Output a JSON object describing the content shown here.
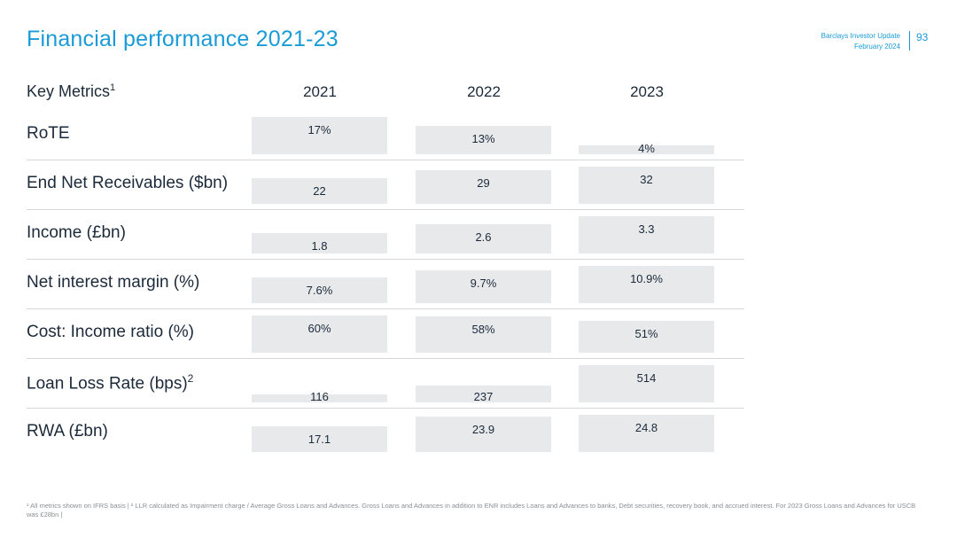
{
  "header": {
    "title": "Financial performance 2021-23",
    "doc_name": "Barclays Investor Update",
    "date": "February 2024",
    "page_number": "93"
  },
  "table": {
    "metric_header": "Key Metrics",
    "metric_header_sup": "1"
  },
  "chart_data": {
    "type": "bar",
    "categories": [
      "2021",
      "2022",
      "2023"
    ],
    "series": [
      {
        "name": "RoTE",
        "values": [
          17,
          13,
          4
        ],
        "labels": [
          "17%",
          "13%",
          "4%"
        ]
      },
      {
        "name": "End Net Receivables ($bn)",
        "values": [
          22,
          29,
          32
        ],
        "labels": [
          "22",
          "29",
          "32"
        ]
      },
      {
        "name": "Income (£bn)",
        "values": [
          1.8,
          2.6,
          3.3
        ],
        "labels": [
          "1.8",
          "2.6",
          "3.3"
        ]
      },
      {
        "name": "Net interest margin (%)",
        "values": [
          7.6,
          9.7,
          10.9
        ],
        "labels": [
          "7.6%",
          "9.7%",
          "10.9%"
        ]
      },
      {
        "name": "Cost: Income ratio (%)",
        "values": [
          60,
          58,
          51
        ],
        "labels": [
          "60%",
          "58%",
          "51%"
        ]
      },
      {
        "name": "Loan Loss Rate (bps)",
        "sup": "2",
        "values": [
          116,
          237,
          514
        ],
        "labels": [
          "116",
          "237",
          "514"
        ]
      },
      {
        "name": "RWA (£bn)",
        "values": [
          17.1,
          23.9,
          24.8
        ],
        "labels": [
          "17.1",
          "23.9",
          "24.8"
        ]
      }
    ]
  },
  "footnote": "¹ All metrics shown on IFRS basis | ² LLR calculated as Impairment charge / Average Gross Loans and Advances. Gross Loans and Advances in addition to ENR includes Loans and Advances to banks, Debt securities, recovery book, and accrued interest. For 2023 Gross Loans and Advances for USCB was £28bn |"
}
